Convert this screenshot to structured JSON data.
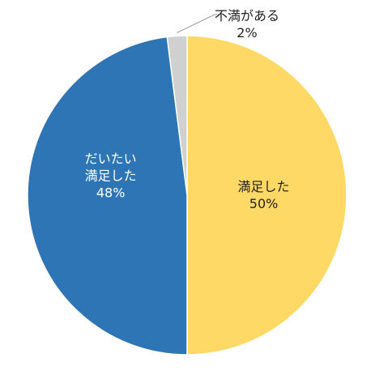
{
  "chart_data": {
    "type": "pie",
    "categories": [
      "満足した",
      "だいたい満足した",
      "不満がある"
    ],
    "values": [
      50,
      48,
      2
    ],
    "value_labels": [
      "50%",
      "48%",
      "2%"
    ],
    "colors": [
      "#FFD966",
      "#2E75B6",
      "#D0D0D0"
    ]
  }
}
